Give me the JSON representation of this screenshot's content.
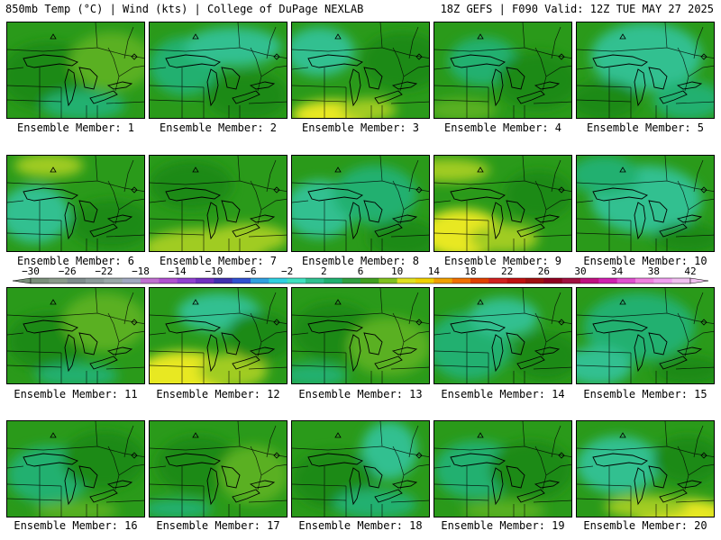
{
  "header": {
    "left": "850mb Temp (°C) | Wind (kts) | College of DuPage NEXLAB",
    "right": "18Z GEFS | F090 Valid: 12Z TUE MAY 27 2025"
  },
  "colorbar": {
    "ticks": [
      "−30",
      "−26",
      "−22",
      "−18",
      "−14",
      "−10",
      "−6",
      "−2",
      "2",
      "6",
      "10",
      "14",
      "18",
      "22",
      "26",
      "30",
      "34",
      "38",
      "42"
    ],
    "colors": [
      "#7a8f7a",
      "#8a9a8a",
      "#7e8c8c",
      "#8c9a9a",
      "#9aa8a8",
      "#a0a8c0",
      "#c070d0",
      "#b050d0",
      "#9040d0",
      "#7030c0",
      "#4030b0",
      "#3050d0",
      "#30a0e0",
      "#30d0e0",
      "#40e0c0",
      "#30c090",
      "#20b070",
      "#30a040",
      "#40a020",
      "#80c020",
      "#e0e020",
      "#f0d000",
      "#f0a000",
      "#f07000",
      "#e04000",
      "#d02020",
      "#c01010",
      "#a01010",
      "#900020",
      "#a01040",
      "#c01080",
      "#d020b0",
      "#e050d0",
      "#f080e0",
      "#f0a0f0",
      "#f0c0f0"
    ]
  },
  "panels": [
    {
      "label": "Ensemble Member: 1"
    },
    {
      "label": "Ensemble Member: 2"
    },
    {
      "label": "Ensemble Member: 3"
    },
    {
      "label": "Ensemble Member: 4"
    },
    {
      "label": "Ensemble Member: 5"
    },
    {
      "label": "Ensemble Member: 6"
    },
    {
      "label": "Ensemble Member: 7"
    },
    {
      "label": "Ensemble Member: 8"
    },
    {
      "label": "Ensemble Member: 9"
    },
    {
      "label": "Ensemble Member: 10"
    },
    {
      "label": "Ensemble Member: 11"
    },
    {
      "label": "Ensemble Member: 12"
    },
    {
      "label": "Ensemble Member: 13"
    },
    {
      "label": "Ensemble Member: 14"
    },
    {
      "label": "Ensemble Member: 15"
    },
    {
      "label": "Ensemble Member: 16"
    },
    {
      "label": "Ensemble Member: 17"
    },
    {
      "label": "Ensemble Member: 18"
    },
    {
      "label": "Ensemble Member: 19"
    },
    {
      "label": "Ensemble Member: 20"
    }
  ],
  "map_colors": {
    "base": "#2a9a1a",
    "dark": "#1f8a14",
    "teal": "#20b070",
    "light_teal": "#30c090",
    "light_green": "#5ab020",
    "yellow_green": "#a0cc20",
    "yellow": "#e8e820"
  }
}
